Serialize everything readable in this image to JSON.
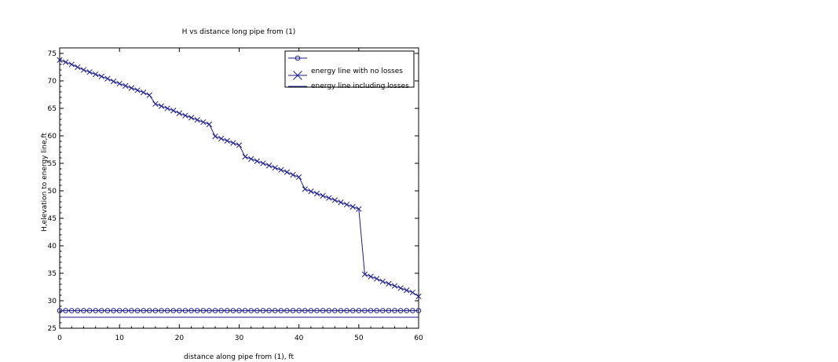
{
  "chart_data": {
    "type": "line",
    "title": "H vs distance long pipe from (1)",
    "xlabel": "distance along pipe from (1), ft",
    "ylabel": "H,elevation to energy line,ft",
    "xlim": [
      0,
      60
    ],
    "ylim": [
      25,
      76
    ],
    "xticks": [
      "0",
      "10",
      "20",
      "30",
      "40",
      "50",
      "60"
    ],
    "yticks": [
      "25",
      "30",
      "35",
      "40",
      "45",
      "50",
      "55",
      "60",
      "65",
      "70",
      "75"
    ],
    "grid": false,
    "legend_position": "top-right",
    "series": [
      {
        "name": "",
        "marker": "circle",
        "color": "#1c1c8c",
        "x": [
          0,
          60
        ],
        "y": [
          28.2,
          28.2
        ],
        "marker_step": 1
      },
      {
        "name": "energy line with no losses",
        "marker": "x",
        "color": "#1c1c8c",
        "x": [
          0,
          1,
          2,
          3,
          4,
          5,
          6,
          7,
          8,
          9,
          10,
          11,
          12,
          13,
          14,
          15,
          16,
          17,
          18,
          19,
          20,
          21,
          22,
          23,
          24,
          25,
          26,
          27,
          28,
          29,
          30,
          31,
          32,
          33,
          34,
          35,
          36,
          37,
          38,
          39,
          40,
          41,
          42,
          43,
          44,
          45,
          46,
          47,
          48,
          49,
          50,
          51,
          52,
          53,
          54,
          55,
          56,
          57,
          58,
          59,
          60
        ],
        "y": [
          73.8,
          73.4,
          73.0,
          72.5,
          72.0,
          71.6,
          71.2,
          70.8,
          70.4,
          69.9,
          69.5,
          69.1,
          68.7,
          68.3,
          67.9,
          67.4,
          65.8,
          65.4,
          65.0,
          64.6,
          64.1,
          63.7,
          63.3,
          62.9,
          62.5,
          62.1,
          59.9,
          59.5,
          59.1,
          58.7,
          58.3,
          56.2,
          55.8,
          55.4,
          55.0,
          54.6,
          54.2,
          53.8,
          53.4,
          52.9,
          52.5,
          50.3,
          49.9,
          49.5,
          49.1,
          48.7,
          48.3,
          47.9,
          47.5,
          47.1,
          46.7,
          34.8,
          34.4,
          34.0,
          33.5,
          33.1,
          32.7,
          32.3,
          31.9,
          31.5,
          30.8
        ]
      },
      {
        "name": "energy line including losses",
        "marker": "none",
        "color": "#1c1c8c",
        "x": [
          0,
          60
        ],
        "y": [
          27.0,
          27.0
        ]
      }
    ]
  }
}
